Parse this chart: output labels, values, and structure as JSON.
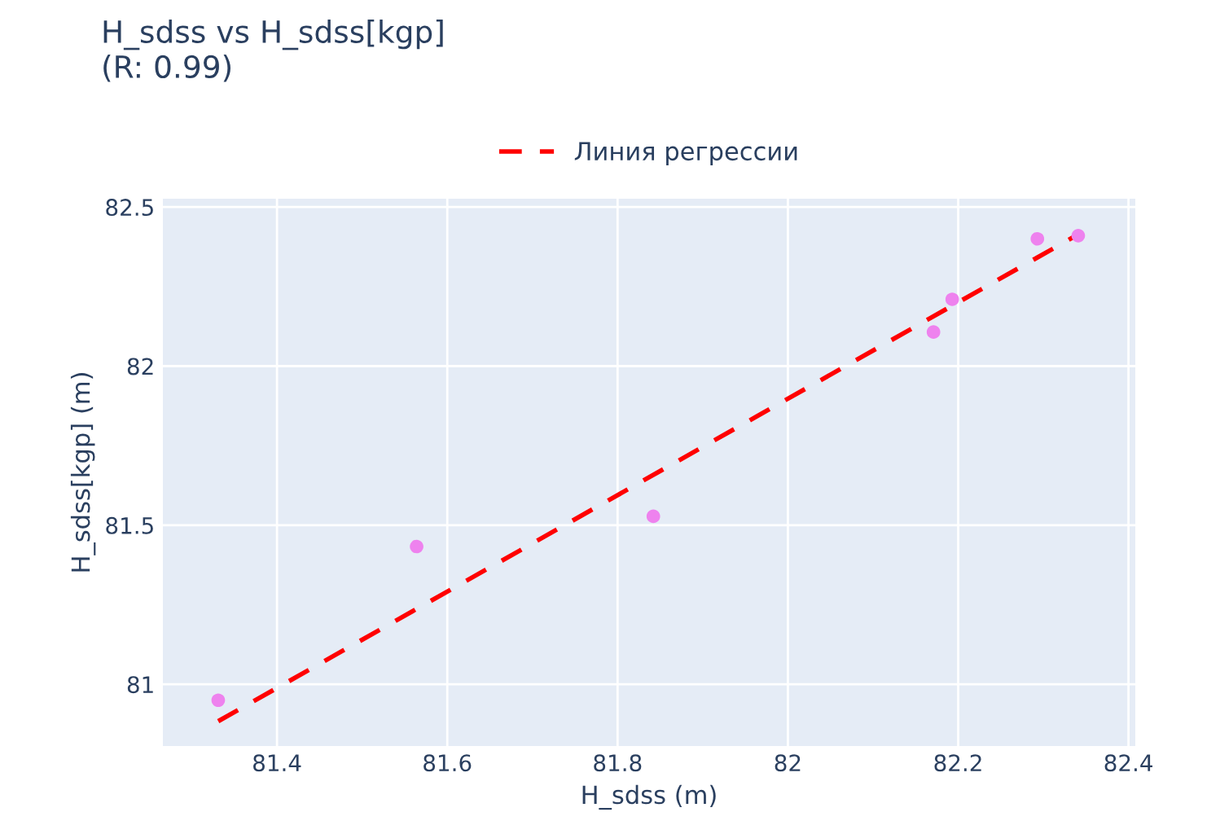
{
  "chart_data": {
    "type": "scatter",
    "title": "H_sdss vs H_sdss[kgp]\n(R: 0.99)",
    "xlabel": "H_sdss (m)",
    "ylabel": "H_sdss[kgp] (m)",
    "series": [
      {
        "color": "#ee82ee",
        "marker": "circle",
        "x": [
          81.331,
          81.564,
          81.842,
          82.171,
          82.193,
          82.293,
          82.341
        ],
        "values": [
          80.95,
          81.433,
          81.528,
          82.107,
          82.21,
          82.4,
          82.41
        ]
      },
      {
        "type": "line",
        "name": "Линия регрессии",
        "color": "#ff0000",
        "line_style": "dashed",
        "marker": "none",
        "x": [
          81.331,
          82.341
        ],
        "values": [
          80.884,
          82.414
        ]
      }
    ],
    "xlim": [
      81.266,
      82.408
    ],
    "ylim": [
      80.806,
      82.526
    ],
    "xticks": [
      {
        "value": 81.4,
        "label": "81.4"
      },
      {
        "value": 81.6,
        "label": "81.6"
      },
      {
        "value": 81.8,
        "label": "81.8"
      },
      {
        "value": 82,
        "label": "82"
      },
      {
        "value": 82.2,
        "label": "82.2"
      },
      {
        "value": 82.4,
        "label": "82.4"
      }
    ],
    "yticks": [
      {
        "value": 81,
        "label": "81"
      },
      {
        "value": 81.5,
        "label": "81.5"
      },
      {
        "value": 82,
        "label": "82"
      },
      {
        "value": 82.5,
        "label": "82.5"
      }
    ],
    "grid": true,
    "legend": "top"
  }
}
